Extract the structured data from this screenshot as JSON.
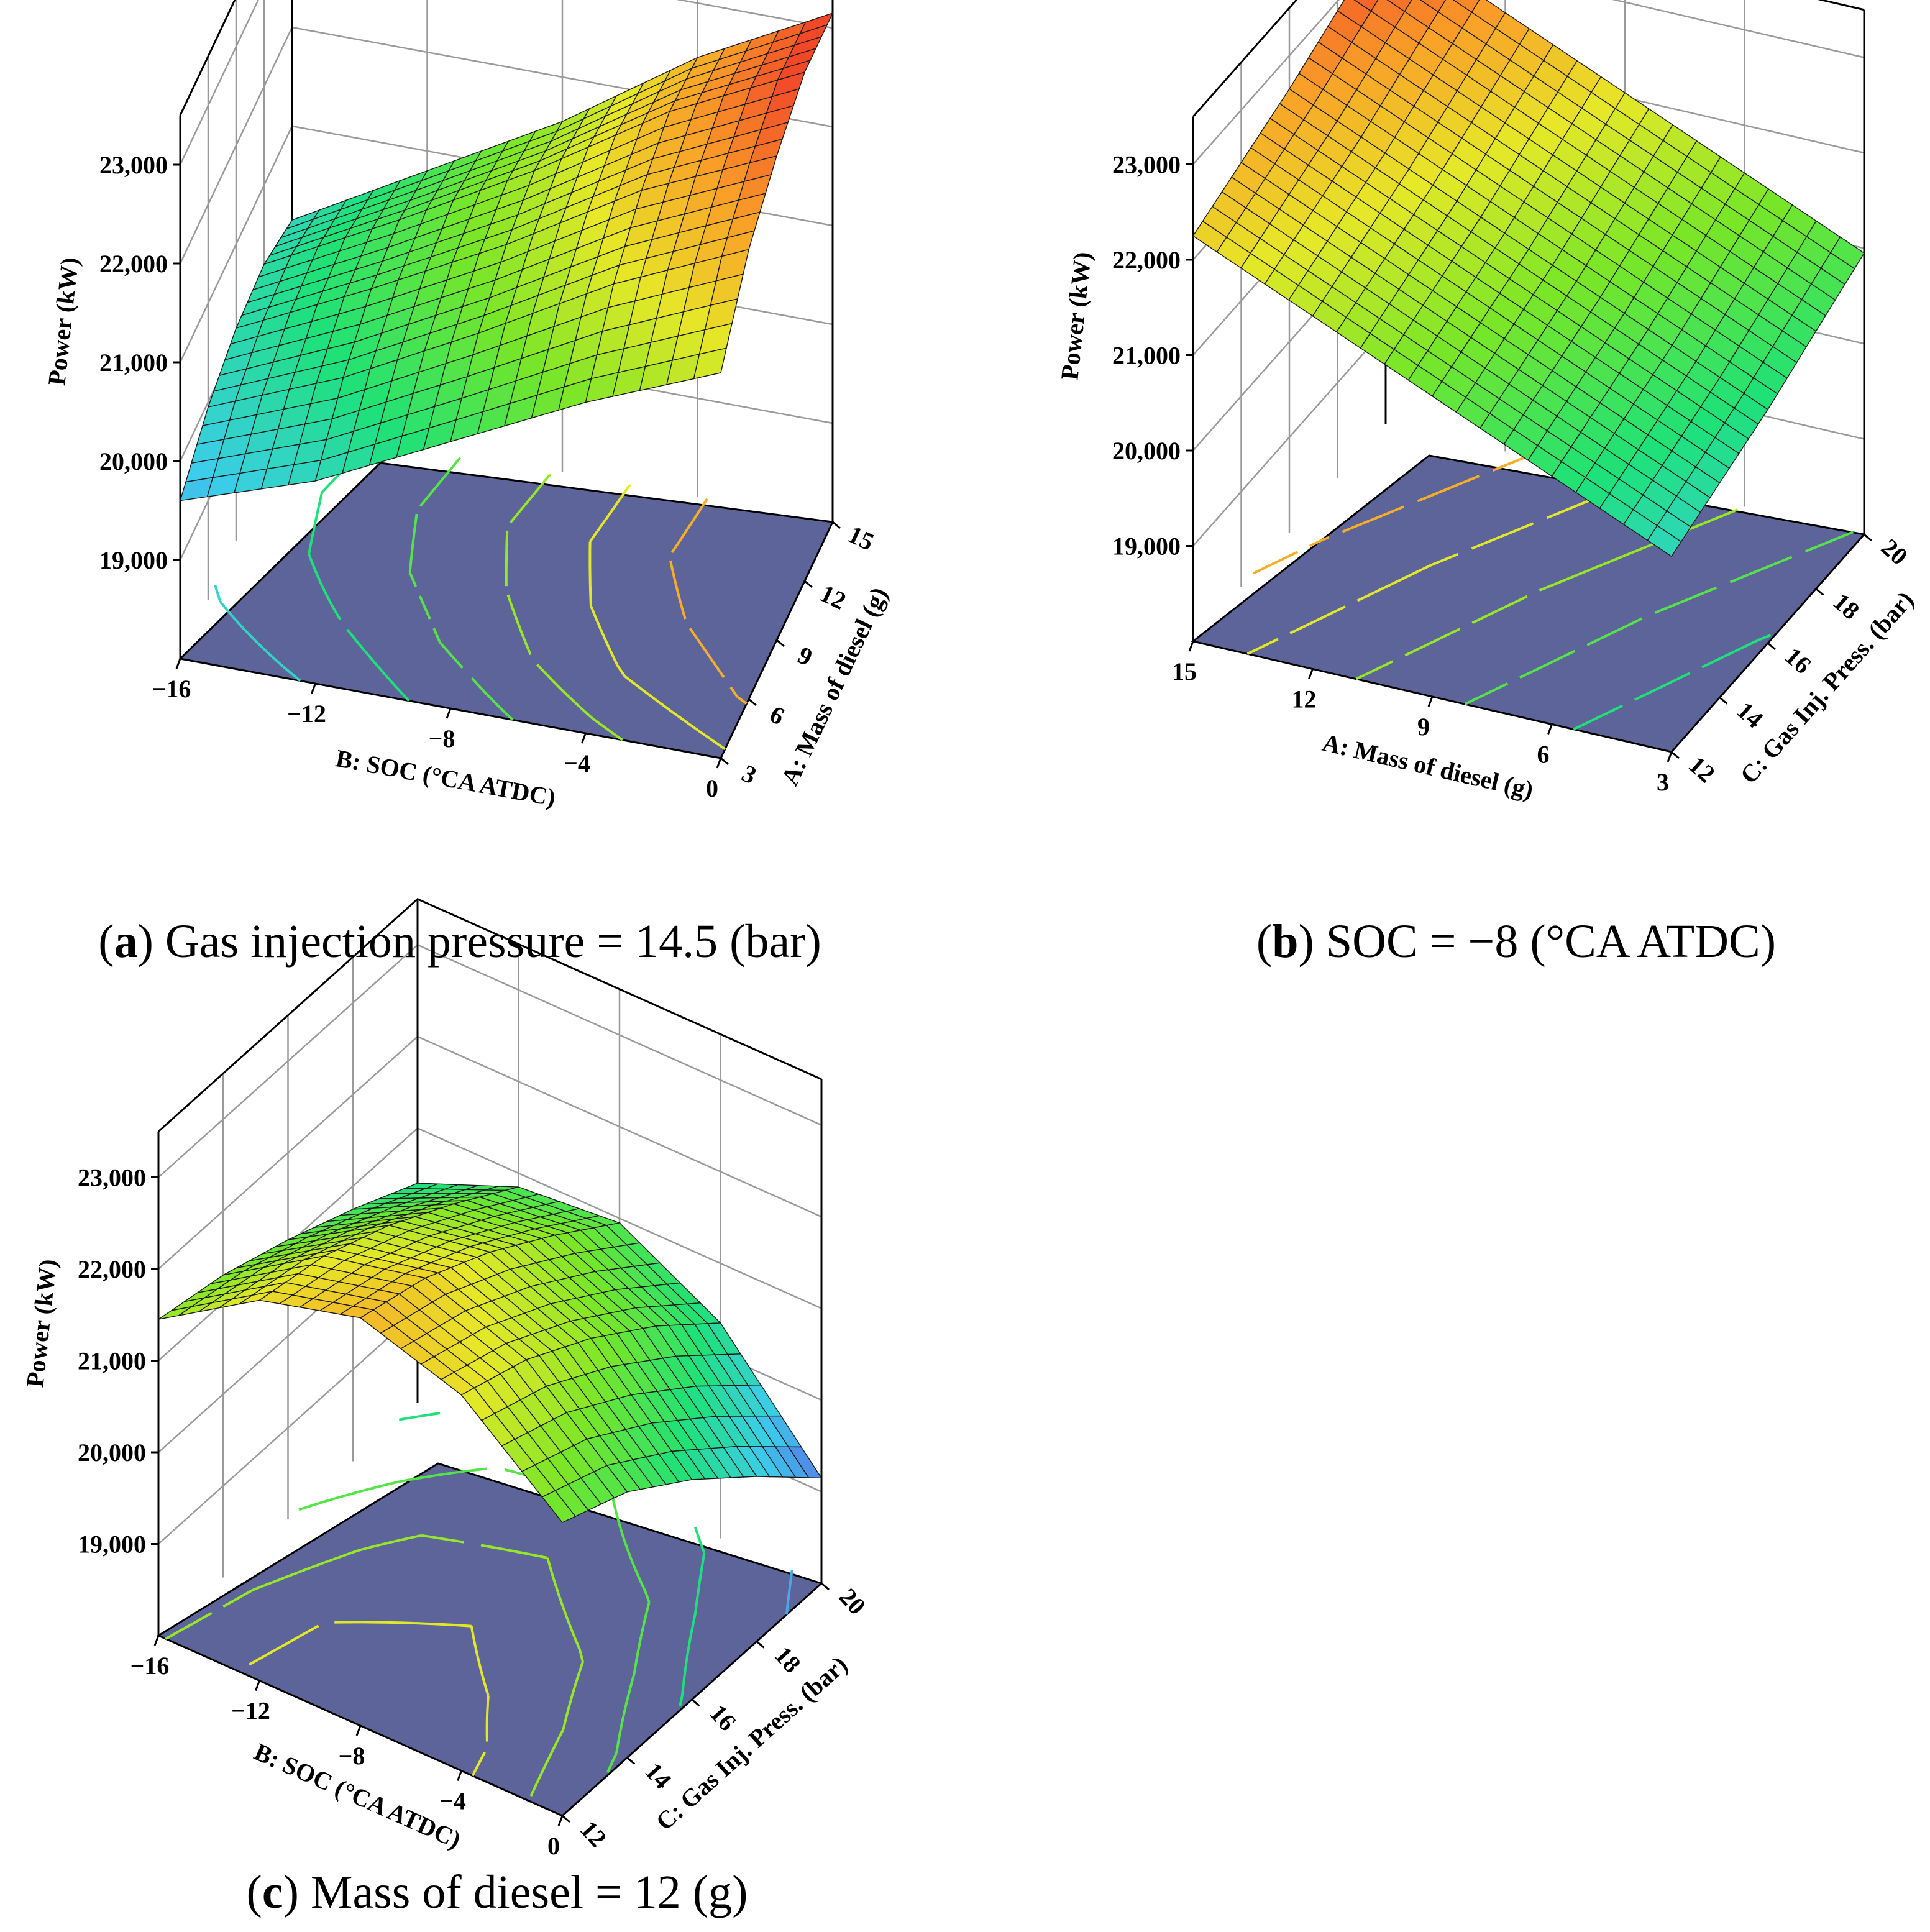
{
  "chart_data": [
    {
      "id": "a",
      "type": "surface3d",
      "caption_letter": "a",
      "caption_text": "Gas injection pressure = 14.5 (bar)",
      "zlabel": "Power (kW)",
      "xlabel": "B: SOC (°CA ATDC)",
      "ylabel": "A: Mass of diesel (g)",
      "x": [
        -16,
        -12,
        -8,
        -4,
        0
      ],
      "x_tick_labels": [
        "−16",
        "−12",
        "−8",
        "−4",
        "0"
      ],
      "y": [
        3,
        6,
        9,
        12,
        15
      ],
      "y_tick_labels": [
        "3",
        "6",
        "9",
        "12",
        "15"
      ],
      "z_ticks": [
        19000,
        20000,
        21000,
        22000,
        23000
      ],
      "z_tick_labels": [
        "19,000",
        "20,000",
        "21,000",
        "22,000",
        "23,000"
      ],
      "zlim": [
        18000,
        23500
      ],
      "contour_levels": [
        19500,
        20000,
        20500,
        21000,
        21500,
        22000,
        22500
      ],
      "z_values": [
        [
          19600,
          20050,
          20700,
          21350,
          21900
        ],
        [
          19950,
          20500,
          21200,
          21950,
          22550
        ],
        [
          20150,
          20800,
          21500,
          22300,
          22900
        ],
        [
          20200,
          20900,
          21650,
          22500,
          23150
        ],
        [
          20050,
          20800,
          21550,
          22450,
          23150
        ]
      ]
    },
    {
      "id": "b",
      "type": "surface3d",
      "caption_letter": "b",
      "caption_text": "SOC = −8 (°CA ATDC)",
      "zlabel": "Power (kW)",
      "xlabel": "A: Mass of diesel (g)",
      "ylabel": "C: Gas Inj. Press. (bar)",
      "x": [
        15,
        12,
        9,
        6,
        3
      ],
      "x_tick_labels": [
        "15",
        "12",
        "9",
        "6",
        "3"
      ],
      "y": [
        12,
        14,
        16,
        18,
        20
      ],
      "y_tick_labels": [
        "12",
        "14",
        "16",
        "18",
        "20"
      ],
      "z_ticks": [
        19000,
        20000,
        21000,
        22000,
        23000
      ],
      "z_tick_labels": [
        "19,000",
        "20,000",
        "21,000",
        "22,000",
        "23,000"
      ],
      "zlim": [
        18000,
        23500
      ],
      "contour_levels": [
        20500,
        21000,
        21500,
        22000,
        22500
      ],
      "z_values": [
        [
          22250,
          21700,
          21150,
          20600,
          20050
        ],
        [
          22450,
          21900,
          21350,
          20800,
          20250
        ],
        [
          22650,
          22100,
          21550,
          21000,
          20450
        ],
        [
          22900,
          22350,
          21800,
          21250,
          20700
        ],
        [
          23150,
          22600,
          22050,
          21500,
          20950
        ]
      ]
    },
    {
      "id": "c",
      "type": "surface3d",
      "caption_letter": "c",
      "caption_text": "Mass of diesel = 12 (g)",
      "zlabel": "Power (kW)",
      "xlabel": "B: SOC (°CA ATDC)",
      "ylabel": "C: Gas Inj. Press. (bar)",
      "x": [
        -16,
        -12,
        -8,
        -4,
        0
      ],
      "x_tick_labels": [
        "−16",
        "−12",
        "−8",
        "−4",
        "0"
      ],
      "y": [
        12,
        14,
        16,
        18,
        20
      ],
      "y_tick_labels": [
        "12",
        "14",
        "16",
        "18",
        "20"
      ],
      "z_ticks": [
        19000,
        20000,
        21000,
        22000,
        23000
      ],
      "z_tick_labels": [
        "19,000",
        "20,000",
        "21,000",
        "22,000",
        "23,000"
      ],
      "zlim": [
        18000,
        23500
      ],
      "contour_levels": [
        19500,
        20500,
        21000,
        21500,
        22000,
        22500
      ],
      "z_values": [
        [
          21450,
          22150,
          22450,
          22100,
          21200
        ],
        [
          21300,
          22000,
          22250,
          21850,
          20900
        ],
        [
          21050,
          21700,
          21900,
          21450,
          20400
        ],
        [
          20750,
          21300,
          21450,
          20950,
          19800
        ],
        [
          20400,
          20850,
          20950,
          20350,
          19150
        ]
      ]
    }
  ]
}
